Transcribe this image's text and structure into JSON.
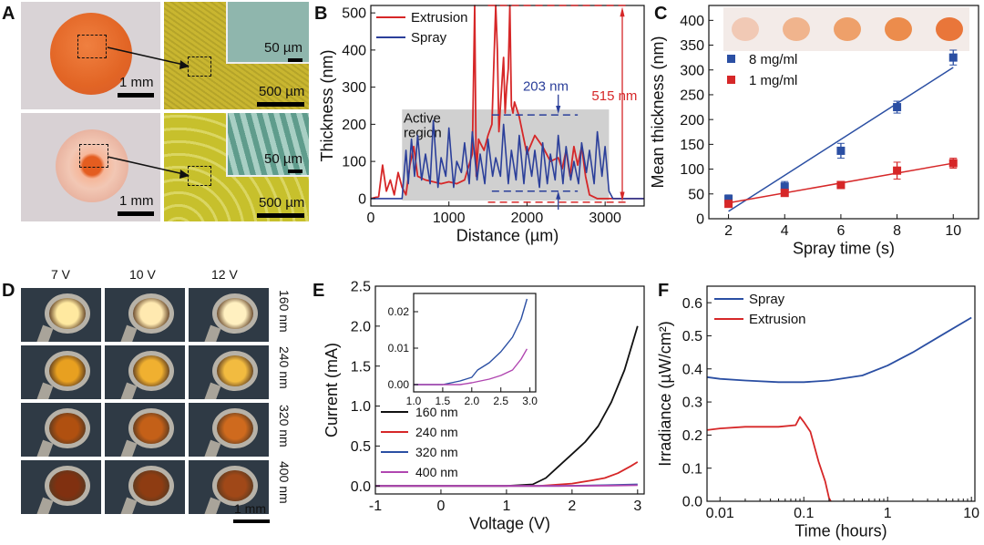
{
  "panels": {
    "A": {
      "label": "A",
      "scale_top_left": "1 mm",
      "scale_top_mid": "50 µm",
      "scale_top_right": "500 µm",
      "scale_bot_left": "1 mm",
      "scale_bot_mid": "50 µm",
      "scale_bot_right": "500 µm"
    },
    "B": {
      "label": "B"
    },
    "C": {
      "label": "C"
    },
    "D": {
      "label": "D",
      "columns": [
        "7 V",
        "10 V",
        "12 V"
      ],
      "rows": [
        "160 nm",
        "240 nm",
        "320 nm",
        "400 nm"
      ],
      "scale": "1 mm"
    },
    "E": {
      "label": "E"
    },
    "F": {
      "label": "F"
    }
  },
  "chart_data": [
    {
      "panel": "B",
      "type": "line",
      "xlabel": "Distance (µm)",
      "ylabel": "Thickness (nm)",
      "xlim": [
        0,
        3500
      ],
      "ylim": [
        -20,
        520
      ],
      "xticks": [
        0,
        1000,
        2000,
        3000
      ],
      "yticks": [
        0,
        100,
        200,
        300,
        400,
        500
      ],
      "legend": {
        "placement": "top-left",
        "entries": [
          "Extrusion",
          "Spray"
        ]
      },
      "annotations": {
        "region": "Active region",
        "spray_height": "203 nm",
        "extrusion_height": "515 nm"
      },
      "region_range": [
        400,
        3050
      ],
      "series": [
        {
          "name": "Extrusion",
          "color": "#d62728",
          "x": [
            0,
            100,
            150,
            200,
            250,
            300,
            350,
            400,
            450,
            500,
            550,
            600,
            700,
            800,
            900,
            1000,
            1100,
            1200,
            1300,
            1330,
            1350,
            1380,
            1400,
            1450,
            1500,
            1550,
            1600,
            1620,
            1640,
            1660,
            1700,
            1720,
            1740,
            1760,
            1780,
            1800,
            1820,
            1840,
            1900,
            1950,
            2000,
            2100,
            2200,
            2300,
            2400,
            2450,
            2500,
            2550,
            2600,
            2650,
            2700,
            2750,
            2800,
            2900,
            3000,
            3100,
            3200,
            3300,
            3400,
            3500
          ],
          "y": [
            0,
            5,
            90,
            20,
            50,
            10,
            70,
            30,
            10,
            90,
            140,
            60,
            50,
            45,
            40,
            45,
            40,
            50,
            120,
            520,
            60,
            160,
            150,
            130,
            170,
            200,
            520,
            400,
            180,
            250,
            380,
            230,
            300,
            350,
            520,
            250,
            230,
            260,
            220,
            170,
            120,
            170,
            140,
            100,
            110,
            80,
            130,
            60,
            140,
            90,
            140,
            60,
            10,
            0,
            0,
            0,
            0,
            0,
            0,
            0
          ]
        },
        {
          "name": "Spray",
          "color": "#2b3f9a",
          "x": [
            0,
            100,
            200,
            300,
            400,
            450,
            480,
            520,
            560,
            600,
            650,
            700,
            760,
            800,
            860,
            900,
            960,
            1000,
            1060,
            1100,
            1160,
            1200,
            1260,
            1300,
            1360,
            1400,
            1460,
            1500,
            1560,
            1600,
            1660,
            1700,
            1760,
            1800,
            1860,
            1900,
            1960,
            2000,
            2060,
            2100,
            2160,
            2200,
            2260,
            2300,
            2360,
            2400,
            2460,
            2500,
            2560,
            2600,
            2660,
            2700,
            2760,
            2800,
            2860,
            2900,
            2960,
            3000,
            3050,
            3100,
            3200,
            3300,
            3400,
            3500
          ],
          "y": [
            0,
            0,
            0,
            0,
            0,
            130,
            40,
            160,
            60,
            170,
            50,
            120,
            40,
            210,
            30,
            110,
            60,
            190,
            30,
            100,
            70,
            150,
            40,
            180,
            50,
            120,
            40,
            160,
            60,
            110,
            60,
            200,
            40,
            130,
            50,
            170,
            40,
            140,
            60,
            130,
            30,
            150,
            40,
            120,
            50,
            170,
            40,
            140,
            50,
            100,
            40,
            150,
            70,
            130,
            40,
            180,
            60,
            140,
            20,
            0,
            0,
            0,
            0,
            0
          ]
        }
      ]
    },
    {
      "panel": "C",
      "type": "scatter",
      "xlabel": "Spray time (s)",
      "ylabel": "Mean thickness (nm)",
      "xlim": [
        1.3,
        10.9
      ],
      "ylim": [
        0,
        430
      ],
      "xticks": [
        2,
        4,
        6,
        8,
        10
      ],
      "yticks": [
        0,
        50,
        100,
        150,
        200,
        250,
        300,
        350,
        400
      ],
      "legend": {
        "placement": "top-left",
        "entries": [
          "8 mg/ml",
          "1 mg/ml"
        ]
      },
      "series": [
        {
          "name": "8 mg/ml",
          "color": "#2b4fa3",
          "x": [
            2,
            4,
            6,
            8,
            10
          ],
          "y": [
            40,
            65,
            137,
            225,
            325
          ],
          "err": [
            8,
            10,
            15,
            12,
            15
          ],
          "fit": [
            [
              2,
              15
            ],
            [
              10,
              305
            ]
          ]
        },
        {
          "name": "1 mg/ml",
          "color": "#d62728",
          "x": [
            2,
            4,
            6,
            8,
            10
          ],
          "y": [
            30,
            52,
            68,
            97,
            112
          ],
          "err": [
            6,
            7,
            6,
            17,
            10
          ],
          "fit": [
            [
              2,
              32
            ],
            [
              10,
              112
            ]
          ]
        }
      ]
    },
    {
      "panel": "E",
      "type": "line",
      "xlabel": "Voltage (V)",
      "ylabel": "Current (mA)",
      "xlim": [
        -1,
        3.1
      ],
      "ylim": [
        -0.1,
        2.5
      ],
      "xticks": [
        -1,
        0,
        1,
        2,
        3
      ],
      "yticks": [
        0.0,
        0.5,
        1.0,
        1.5,
        2.0,
        2.5
      ],
      "legend": {
        "placement": "bottom-left",
        "entries": [
          "160 nm",
          "240 nm",
          "320 nm",
          "400 nm"
        ]
      },
      "series": [
        {
          "name": "160 nm",
          "color": "#111111",
          "x": [
            -1,
            1.0,
            1.4,
            1.6,
            1.8,
            2.0,
            2.2,
            2.4,
            2.6,
            2.8,
            3.0
          ],
          "y": [
            0,
            0,
            0.02,
            0.1,
            0.25,
            0.4,
            0.55,
            0.75,
            1.05,
            1.45,
            2.0
          ]
        },
        {
          "name": "240 nm",
          "color": "#d62728",
          "x": [
            -1,
            1.5,
            2.0,
            2.3,
            2.5,
            2.7,
            2.9,
            3.0
          ],
          "y": [
            0,
            0,
            0.03,
            0.07,
            0.1,
            0.16,
            0.25,
            0.3
          ]
        },
        {
          "name": "320 nm",
          "color": "#2b4fa3",
          "x": [
            -1,
            1.8,
            2.5,
            3.0
          ],
          "y": [
            0,
            0,
            0.01,
            0.02
          ]
        },
        {
          "name": "400 nm",
          "color": "#b046b0",
          "x": [
            -1,
            2.0,
            2.6,
            3.0
          ],
          "y": [
            0,
            0,
            0.005,
            0.01
          ]
        }
      ],
      "inset": {
        "xlim": [
          1.0,
          3.1
        ],
        "ylim": [
          -0.002,
          0.025
        ],
        "xticks": [
          1.0,
          1.5,
          2.0,
          2.5,
          3.0
        ],
        "yticks": [
          0.0,
          0.01,
          0.02
        ],
        "series": [
          {
            "name": "320 nm",
            "color": "#2b4fa3",
            "x": [
              1.0,
              1.5,
              1.8,
              2.0,
              2.1,
              2.3,
              2.5,
              2.7,
              2.85,
              2.95
            ],
            "y": [
              0,
              0,
              0.001,
              0.002,
              0.004,
              0.006,
              0.009,
              0.013,
              0.018,
              0.0235
            ]
          },
          {
            "name": "400 nm",
            "color": "#b046b0",
            "x": [
              1.0,
              1.8,
              2.0,
              2.3,
              2.5,
              2.7,
              2.85,
              2.95
            ],
            "y": [
              0,
              0,
              0.0005,
              0.0015,
              0.0025,
              0.004,
              0.007,
              0.0098
            ]
          }
        ]
      }
    },
    {
      "panel": "F",
      "type": "line",
      "xlabel": "Time (hours)",
      "ylabel": "Irradiance (µW/cm²)",
      "xscale": "log",
      "xlim": [
        0.007,
        11
      ],
      "ylim": [
        0,
        0.65
      ],
      "xticks": [
        0.01,
        0.1,
        1,
        10
      ],
      "yticks": [
        0.0,
        0.1,
        0.2,
        0.3,
        0.4,
        0.5,
        0.6
      ],
      "legend": {
        "placement": "top-left",
        "entries": [
          "Spray",
          "Extrusion"
        ]
      },
      "series": [
        {
          "name": "Spray",
          "color": "#2b4fa3",
          "x": [
            0.007,
            0.01,
            0.02,
            0.05,
            0.1,
            0.2,
            0.5,
            1,
            2,
            5,
            10
          ],
          "y": [
            0.375,
            0.37,
            0.365,
            0.36,
            0.36,
            0.365,
            0.38,
            0.41,
            0.45,
            0.51,
            0.555
          ]
        },
        {
          "name": "Extrusion",
          "color": "#d62728",
          "x": [
            0.007,
            0.01,
            0.02,
            0.05,
            0.08,
            0.09,
            0.1,
            0.12,
            0.15,
            0.18,
            0.2,
            0.21
          ],
          "y": [
            0.215,
            0.22,
            0.225,
            0.225,
            0.23,
            0.255,
            0.24,
            0.21,
            0.12,
            0.06,
            0.01,
            0.0
          ]
        }
      ]
    }
  ]
}
